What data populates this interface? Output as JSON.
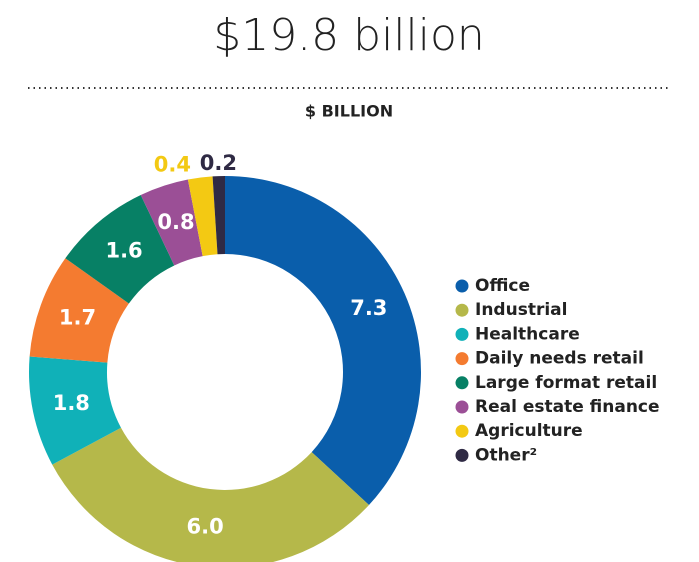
{
  "chart_data": {
    "type": "donut",
    "title": "$19.8 billion",
    "subtitle": "$ BILLION",
    "categories": [
      "Office",
      "Industrial",
      "Healthcare",
      "Daily needs retail",
      "Large format retail",
      "Real estate finance",
      "Agriculture",
      "Other²"
    ],
    "values": [
      7.3,
      6.0,
      1.8,
      1.7,
      1.6,
      0.8,
      0.4,
      0.2
    ],
    "value_labels": [
      "7.3",
      "6.0",
      "1.8",
      "1.7",
      "1.6",
      "0.8",
      "0.4",
      "0.2"
    ],
    "colors": [
      "#0a5eab",
      "#b5b84a",
      "#10b1b8",
      "#f47b30",
      "#078065",
      "#9b4f96",
      "#f3c913",
      "#2f2a44"
    ],
    "legend": "right"
  }
}
